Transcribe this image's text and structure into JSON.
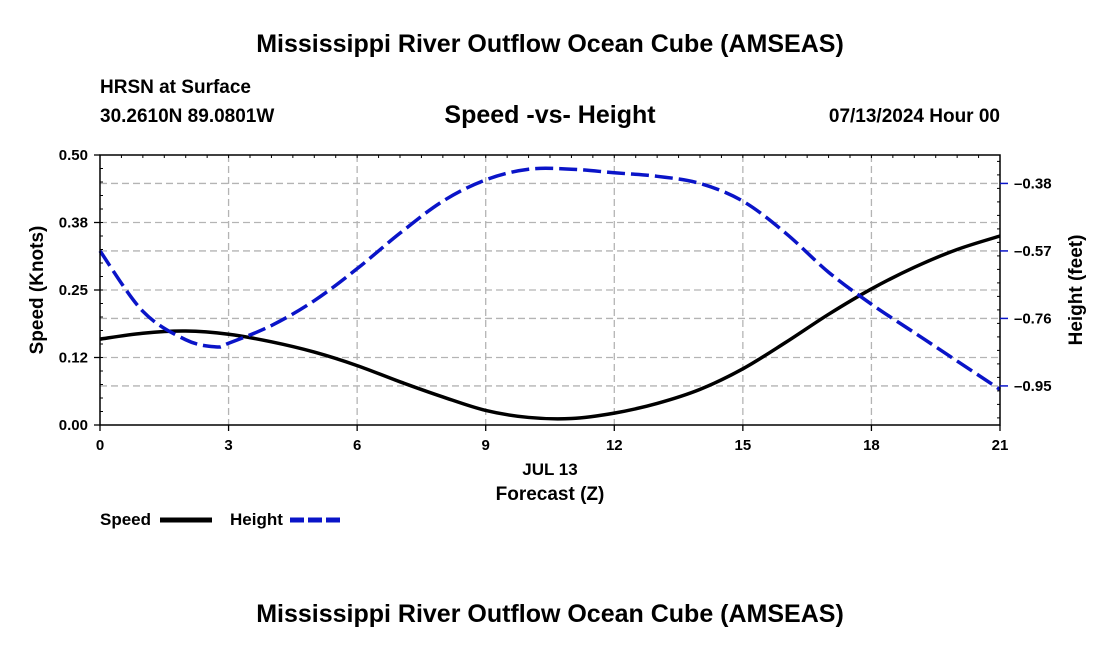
{
  "header": {
    "title": "Mississippi River Outflow Ocean Cube (AMSEAS)",
    "station": "HRSN at Surface",
    "coords": "30.2610N  89.0801W",
    "chart_title": "Speed -vs- Height",
    "datetime": "07/13/2024 Hour 00"
  },
  "legend": {
    "speed_label": "Speed",
    "height_label": "Height"
  },
  "footer": {
    "title": "Mississippi River Outflow Ocean Cube (AMSEAS)"
  },
  "colors": {
    "speed": "#000000",
    "height": "#0a14c8",
    "grid": "#b4b4b4"
  },
  "chart_data": {
    "type": "line",
    "title": "Speed -vs- Height",
    "xlabel": "Forecast (Z)",
    "xlabel_date": "JUL 13",
    "ylabel_left": "Speed (Knots)",
    "ylabel_right": "Height (feet)",
    "xlim": [
      0,
      21
    ],
    "ylim_left": [
      0,
      0.5
    ],
    "ylim_right": [
      -1.06,
      -0.3
    ],
    "x_ticks": [
      0,
      3,
      6,
      9,
      12,
      15,
      18,
      21
    ],
    "y_ticks_left": [
      "0.00",
      "0.12",
      "0.25",
      "0.38",
      "0.50"
    ],
    "y_ticks_left_values": [
      0,
      0.125,
      0.25,
      0.375,
      0.5
    ],
    "y_ticks_right": [
      "-0.38",
      "-0.57",
      "-0.76",
      "-0.95"
    ],
    "y_ticks_right_values": [
      -0.38,
      -0.57,
      -0.76,
      -0.95
    ],
    "grid": true,
    "series": [
      {
        "name": "Speed",
        "axis": "left",
        "style": "solid",
        "x": [
          0,
          1,
          2,
          3,
          4,
          5,
          6,
          7,
          8,
          9,
          10,
          11,
          12,
          13,
          14,
          15,
          16,
          17,
          18,
          19,
          20,
          21
        ],
        "values": [
          0.159,
          0.17,
          0.174,
          0.168,
          0.154,
          0.135,
          0.11,
          0.08,
          0.052,
          0.027,
          0.014,
          0.012,
          0.022,
          0.04,
          0.066,
          0.104,
          0.153,
          0.205,
          0.252,
          0.292,
          0.325,
          0.35
        ]
      },
      {
        "name": "Height",
        "axis": "right",
        "style": "dashed",
        "x": [
          0,
          1,
          2,
          2.7,
          3,
          4,
          5,
          6,
          7,
          8,
          9,
          10,
          11,
          12,
          13,
          14,
          15,
          16,
          17,
          18,
          19,
          20,
          21
        ],
        "values": [
          -0.57,
          -0.74,
          -0.82,
          -0.84,
          -0.83,
          -0.78,
          -0.71,
          -0.62,
          -0.52,
          -0.43,
          -0.37,
          -0.34,
          -0.34,
          -0.35,
          -0.36,
          -0.38,
          -0.43,
          -0.52,
          -0.63,
          -0.72,
          -0.8,
          -0.88,
          -0.96
        ]
      }
    ]
  }
}
